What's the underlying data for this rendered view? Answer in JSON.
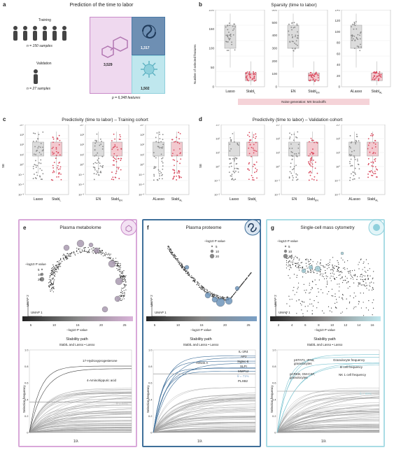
{
  "panel_a": {
    "letter": "a",
    "title": "Prediction of the time to labor",
    "training_label": "Training",
    "training_n": "n = 150 samples",
    "validation_label": "Validation",
    "validation_n": "n = 27 samples",
    "counts": {
      "metabolome": "3,529",
      "proteome": "1,317",
      "cytometry": "1,502"
    },
    "p_features": "p = 6,348 features"
  },
  "panel_b": {
    "letter": "b",
    "title": "Sparsity (time to labor)",
    "ylabel": "Number of selected features",
    "groups": [
      {
        "labels": [
          "Lasso",
          "StablL"
        ],
        "ylim": [
          0,
          200
        ],
        "ticks": [
          "0",
          "50",
          "100",
          "150",
          "200"
        ]
      },
      {
        "labels": [
          "EN",
          "StablEN"
        ],
        "ylim": [
          0,
          600
        ],
        "ticks": [
          "0",
          "100",
          "200",
          "300",
          "400",
          "500",
          "600"
        ]
      },
      {
        "labels": [
          "ALasso",
          "StablAL"
        ],
        "ylim": [
          0,
          140
        ],
        "ticks": [
          "0",
          "20",
          "40",
          "60",
          "80",
          "100",
          "120",
          "140"
        ]
      }
    ],
    "noise_note": "Noise generation: MX knockoffs"
  },
  "panel_c": {
    "letter": "c",
    "title": "Predictivity (time to labor) – Training cohort",
    "ylabel": "SE",
    "groups": [
      [
        "Lasso",
        "StablL"
      ],
      [
        "EN",
        "StablEN"
      ],
      [
        "ALasso",
        "StablAL"
      ]
    ]
  },
  "panel_d": {
    "letter": "d",
    "title": "Predictivity (time to labor) – Validation cohort",
    "ylabel": "SE",
    "groups": [
      [
        "Lasso",
        "StablL"
      ],
      [
        "EN",
        "StablEN"
      ],
      [
        "ALasso",
        "StablAL"
      ]
    ]
  },
  "panel_e": {
    "letter": "e",
    "title": "Plasma metabolome",
    "legend_title": "–log10 P value",
    "legend_values": [
      "5",
      "10",
      "20"
    ],
    "colorbar_label": "–log10 P value",
    "colorbar_ticks": [
      "5",
      "10",
      "15",
      "20",
      "25"
    ],
    "stability_title": "Stability path",
    "stability_legend": "StablL and Lasso   •  Lasso",
    "feature_labels": [
      "17-Hydroxyprogesterone",
      "4-Aminohippuric acid"
    ],
    "threshold": "θ = 37%",
    "ylabel": "Selection frequency",
    "xlabel": "1/λ",
    "umap_x": "UMAP 1",
    "umap_y": "UMAP 2"
  },
  "panel_f": {
    "letter": "f",
    "title": "Plasma proteome",
    "legend_title": "–log10 P value",
    "legend_values": [
      "5",
      "10",
      "20"
    ],
    "colorbar_label": "–log10 P value",
    "colorbar_ticks": [
      "5",
      "10",
      "15",
      "20",
      "25"
    ],
    "stability_title": "Stability path",
    "stability_legend": "StablL and Lasso   •  Lasso",
    "feature_labels": [
      "IL-1R4",
      "AP2",
      "Siglec-6",
      "SLPI",
      "MMP12",
      "PLXB2",
      "Activin A"
    ],
    "threshold": "θ = 71%",
    "ylabel": "Selection frequency",
    "xlabel": "1/λ",
    "umap_x": "UMAP 1",
    "umap_y": "UMAP 2"
  },
  "panel_g": {
    "letter": "g",
    "title": "Single-cell mass cytometry",
    "legend_title": "–log10 P value",
    "legend_values": [
      "5",
      "10",
      "15"
    ],
    "colorbar_label": "–log10 P value",
    "colorbar_ticks": [
      "2",
      "4",
      "6",
      "8",
      "10",
      "12",
      "14",
      "16"
    ],
    "stability_title": "Stability path",
    "stability_legend": "StablL and Lasso   •  Lasso",
    "feature_labels": [
      "pSTAT1, IFNα, granulocytes",
      "Granulocyte frequency",
      "B cell frequency",
      "pCREB, GM-CSF, granulocytes",
      "NK 1 cell frequency"
    ],
    "threshold": "θ = 50%",
    "ylabel": "Selection frequency",
    "xlabel": "1/λ",
    "umap_x": "UMAP 1",
    "umap_y": "UMAP 2"
  },
  "colors": {
    "lasso_gray": "#8a8a8a",
    "stabl_red": "#d94a5e",
    "stabl_box": "#f3c9cf",
    "metabolome": "#c98ac9",
    "proteome": "#4a7aa6",
    "cytometry": "#8fd0dc"
  }
}
